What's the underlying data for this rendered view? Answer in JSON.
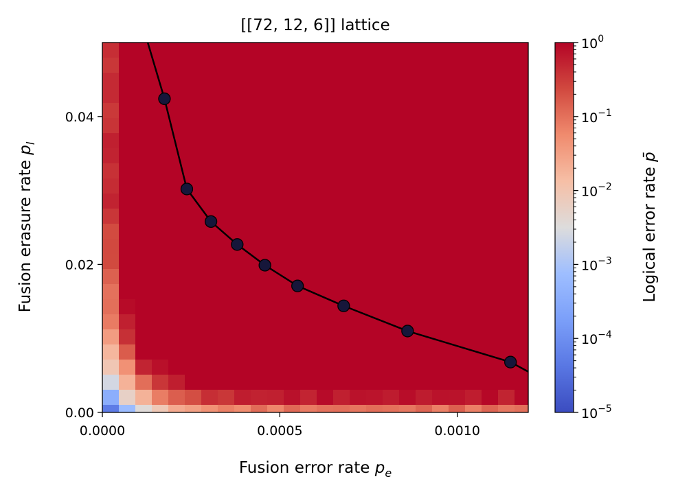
{
  "chart_data": {
    "type": "heatmap",
    "title": "[[72, 12, 6]] lattice",
    "xlabel": "Fusion error rate p_e",
    "ylabel": "Fusion erasure rate p_l",
    "xlim": [
      0,
      0.0012
    ],
    "ylim": [
      0,
      0.05
    ],
    "x_ticks": [
      {
        "value": 0,
        "label": "0.0000"
      },
      {
        "value": 0.0005,
        "label": "0.0005"
      },
      {
        "value": 0.001,
        "label": "0.0010"
      }
    ],
    "y_ticks": [
      {
        "value": 0,
        "label": "0.00"
      },
      {
        "value": 0.02,
        "label": "0.02"
      },
      {
        "value": 0.04,
        "label": "0.04"
      }
    ],
    "colorbar": {
      "label": "Logical error rate p̄",
      "scale": "log",
      "colormap": "coolwarm",
      "range": [
        1e-05,
        1
      ],
      "ticks": [
        {
          "value": 1e-05,
          "base": "10",
          "exp": "−5"
        },
        {
          "value": 0.0001,
          "base": "10",
          "exp": "−4"
        },
        {
          "value": 0.001,
          "base": "10",
          "exp": "−3"
        },
        {
          "value": 0.01,
          "base": "10",
          "exp": "−2"
        },
        {
          "value": 0.1,
          "base": "10",
          "exp": "−1"
        },
        {
          "value": 1,
          "base": "10",
          "exp": "0"
        }
      ]
    },
    "threshold_curve": {
      "x": [
        0.000128,
        0.000175,
        0.000238,
        0.000306,
        0.00038,
        0.000458,
        0.00055,
        0.00068,
        0.00086,
        0.00115,
        0.0012
      ],
      "y": [
        0.05,
        0.0424,
        0.0302,
        0.0258,
        0.0227,
        0.0199,
        0.0171,
        0.0144,
        0.011,
        0.0068,
        0.0055
      ]
    },
    "threshold_points": {
      "x": [
        0.000175,
        0.000238,
        0.000306,
        0.00038,
        0.000458,
        0.00055,
        0.00068,
        0.00086,
        0.00115
      ],
      "y": [
        0.0424,
        0.0302,
        0.0258,
        0.0227,
        0.0199,
        0.0171,
        0.0144,
        0.011,
        0.0068
      ]
    }
  }
}
